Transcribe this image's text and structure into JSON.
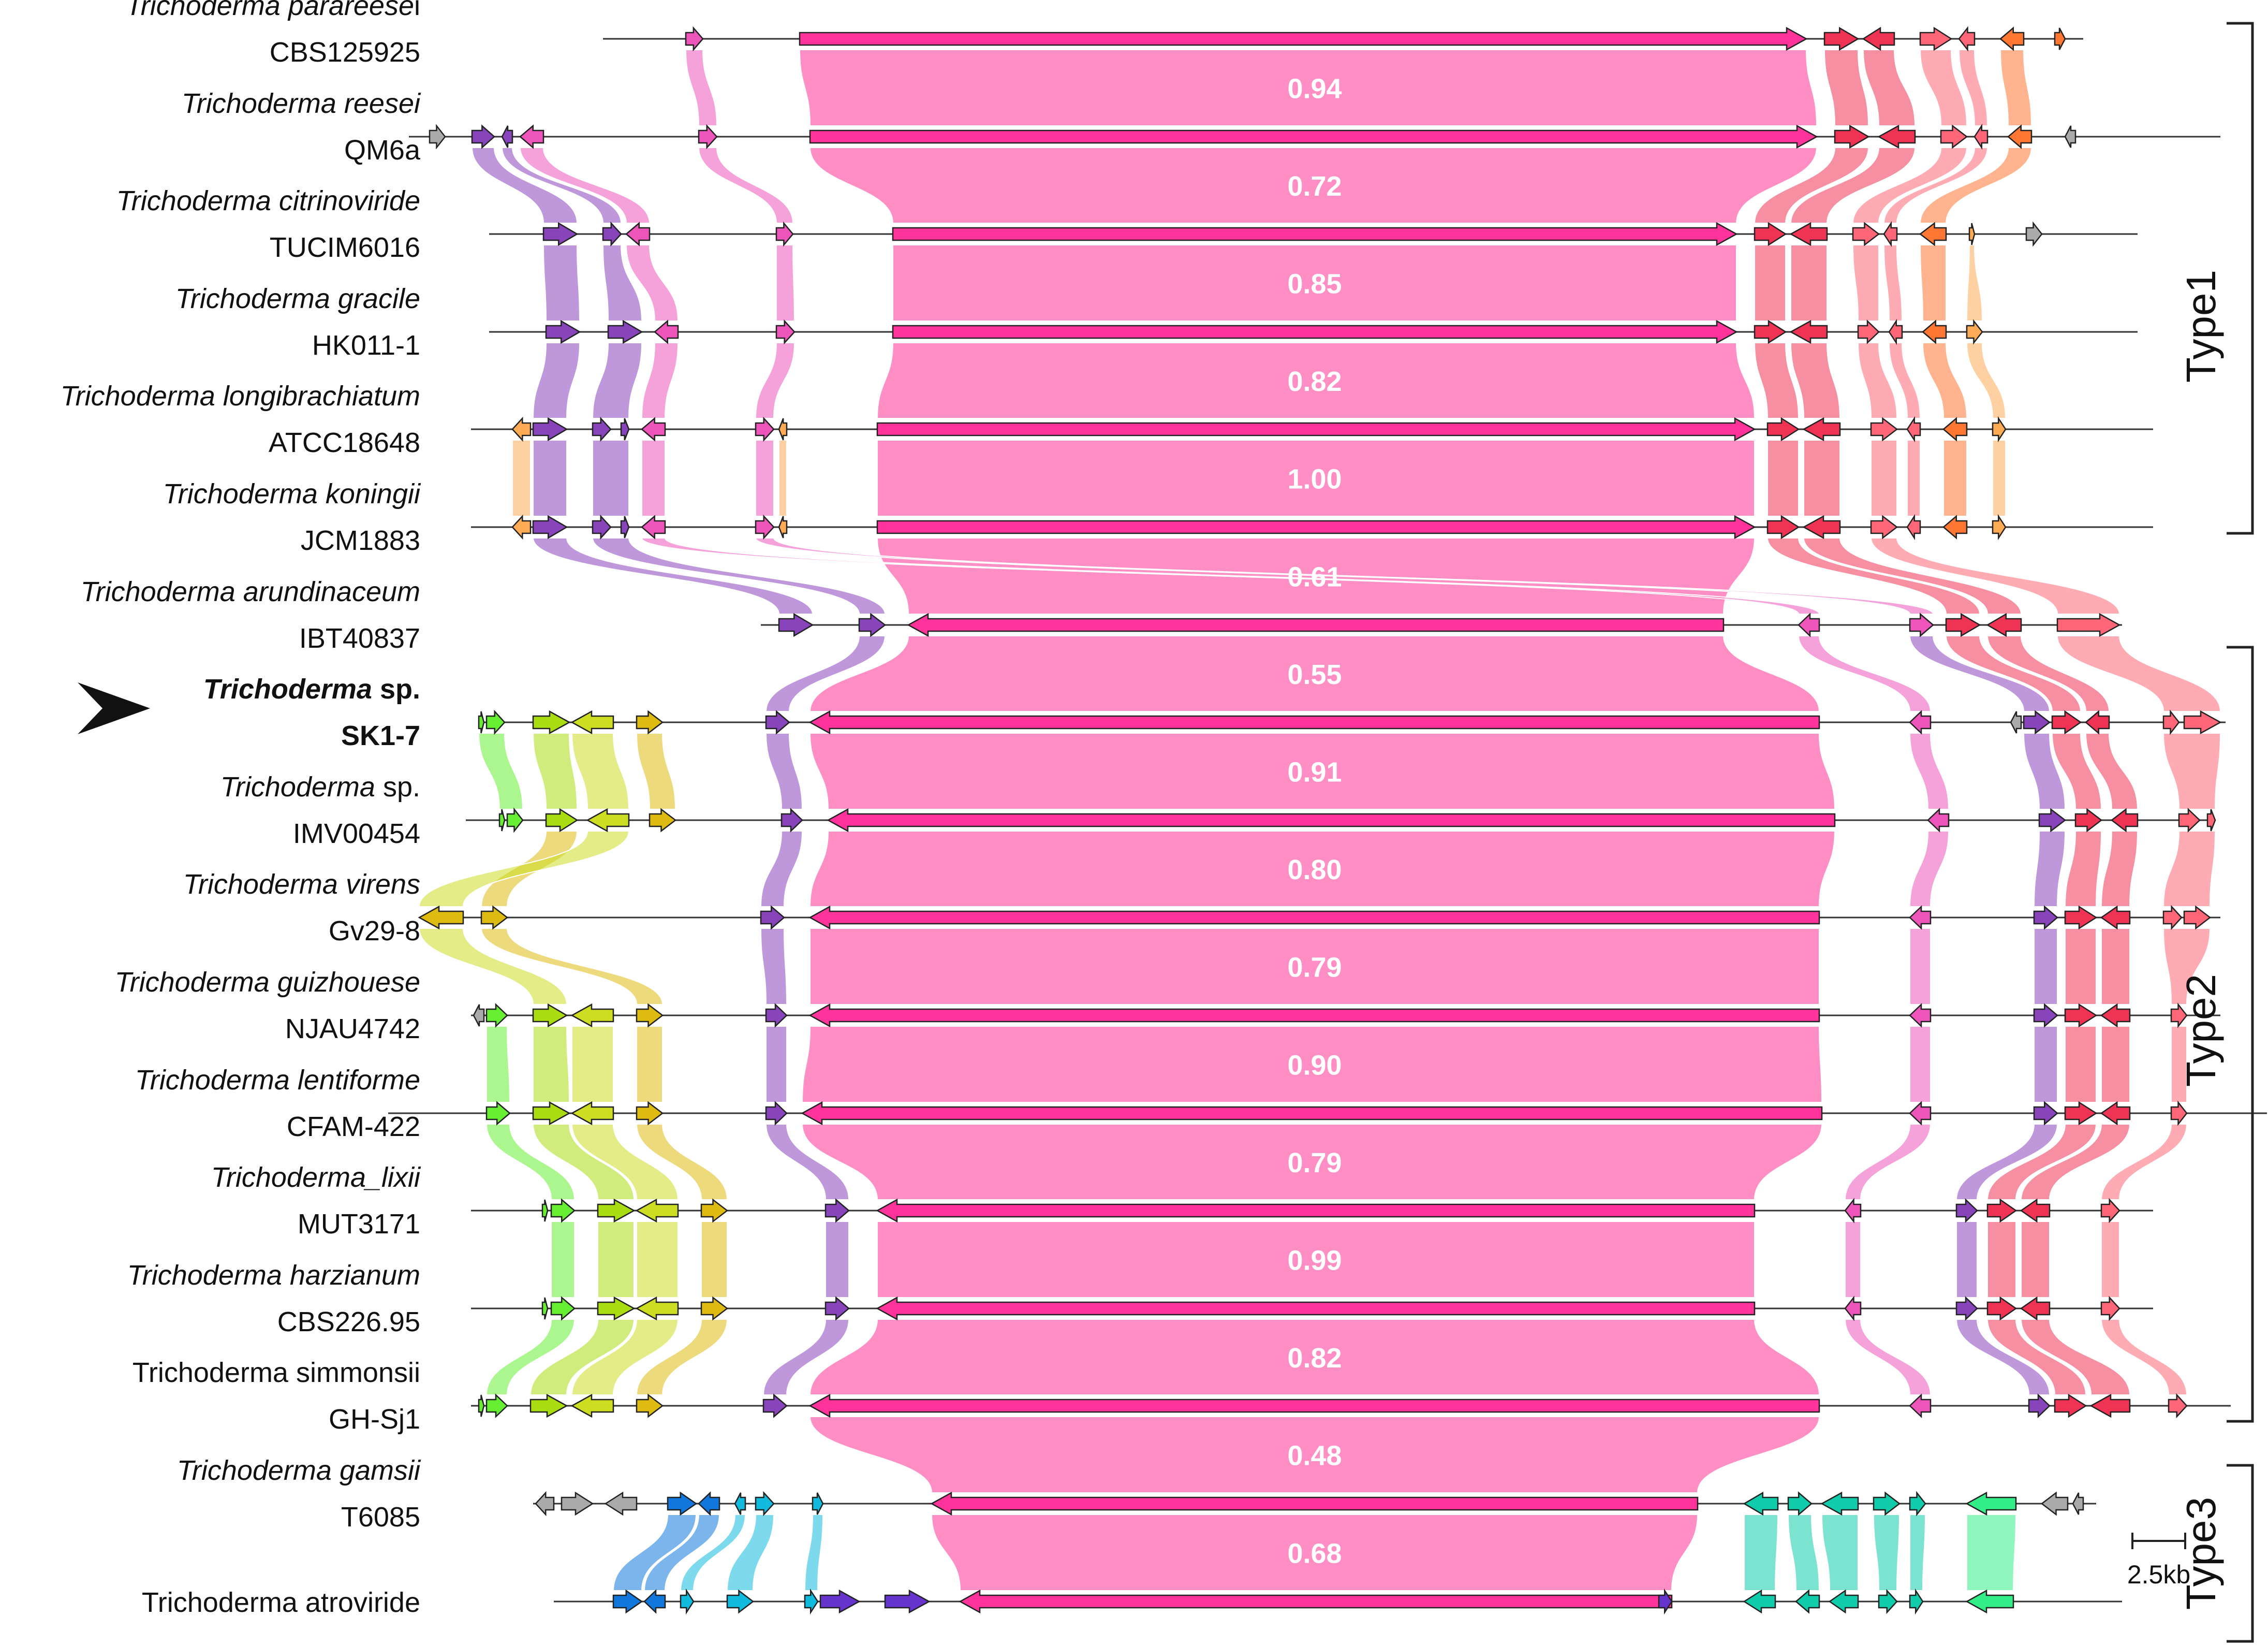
{
  "figure": {
    "rows": [
      {
        "species": "Trichoderma parareese",
        "species_tail": "i",
        "strain": "CBS125925",
        "species_italic": true,
        "highlight": false
      },
      {
        "species": "Trichoderma reesei",
        "species_tail": "",
        "strain": "QM6a",
        "species_italic": true,
        "highlight": false
      },
      {
        "species": "Trichoderma citrinoviride",
        "species_tail": "",
        "strain": "TUCIM6016",
        "species_italic": true,
        "highlight": false
      },
      {
        "species": "Trichoderma gracile",
        "species_tail": "",
        "strain": "HK011-1",
        "species_italic": true,
        "highlight": false
      },
      {
        "species": "Trichoderma longibrachiatum",
        "species_tail": "",
        "strain": "ATCC18648",
        "species_italic": true,
        "highlight": false
      },
      {
        "species": "Trichoderma koningii",
        "species_tail": "",
        "strain": "JCM1883",
        "species_italic": true,
        "highlight": false
      },
      {
        "species": "Trichoderma arundinaceum",
        "species_tail": "",
        "strain": "IBT40837",
        "species_italic": true,
        "highlight": false
      },
      {
        "species": "Trichoderma",
        "species_tail": " sp.",
        "strain": "SK1-7",
        "species_italic": true,
        "highlight": true
      },
      {
        "species": "Trichoderma",
        "species_tail": " sp.",
        "strain": "IMV00454",
        "species_italic": true,
        "highlight": false
      },
      {
        "species": "Trichoderma virens",
        "species_tail": "",
        "strain": "Gv29-8",
        "species_italic": true,
        "highlight": false
      },
      {
        "species": "Trichoderma guizhouese",
        "species_tail": "",
        "strain": "NJAU4742",
        "species_italic": true,
        "highlight": false
      },
      {
        "species": "Trichoderma lentiforme",
        "species_tail": "",
        "strain": "CFAM-422",
        "species_italic": true,
        "highlight": false
      },
      {
        "species": "Trichoderma_lixii",
        "species_tail": "",
        "strain": "MUT3171",
        "species_italic": true,
        "highlight": false
      },
      {
        "species": "Trichoderma harzianum",
        "species_tail": "",
        "strain": "CBS226.95",
        "species_italic": true,
        "highlight": false
      },
      {
        "species": "Trichoderma simmonsii",
        "species_tail": "",
        "strain": "GH-Sj1",
        "species_italic": false,
        "highlight": false
      },
      {
        "species": "Trichoderma gamsii",
        "species_tail": "",
        "strain": "T6085",
        "species_italic": true,
        "highlight": false
      },
      {
        "species": "Trichoderma atroviride",
        "species_tail": "",
        "strain": "",
        "species_italic": false,
        "highlight": false
      }
    ],
    "identities": [
      "0.94",
      "0.72",
      "0.85",
      "0.82",
      "1.00",
      "0.61",
      "0.55",
      "0.91",
      "0.80",
      "0.79",
      "0.90",
      "0.79",
      "0.99",
      "0.82",
      "0.48",
      "0.68"
    ],
    "types": [
      {
        "label": "Type1",
        "first_row": 0,
        "last_row": 5
      },
      {
        "label": "Type2",
        "first_row": 6,
        "last_row": 14
      },
      {
        "label": "Type3",
        "first_row": 15,
        "last_row": 16
      }
    ],
    "scale_bar": "2.5kb",
    "colors": {
      "core": "#ff3399",
      "core_band": "#ff8ec4",
      "magenta": "#ee55bb",
      "purple": "#8844bb",
      "red": "#ee3355",
      "salmon": "#ff6677",
      "orange": "#ff7733",
      "lightorange": "#ffaa55",
      "green": "#66ee33",
      "lime": "#aadd11",
      "yellowgreen": "#ccdd22",
      "olive": "#ddbb11",
      "gray": "#aaaaaa",
      "blue": "#1177dd",
      "cyan": "#11bbdd",
      "teal": "#11ccaa",
      "mint": "#33ee88",
      "violet": "#6633cc"
    }
  }
}
